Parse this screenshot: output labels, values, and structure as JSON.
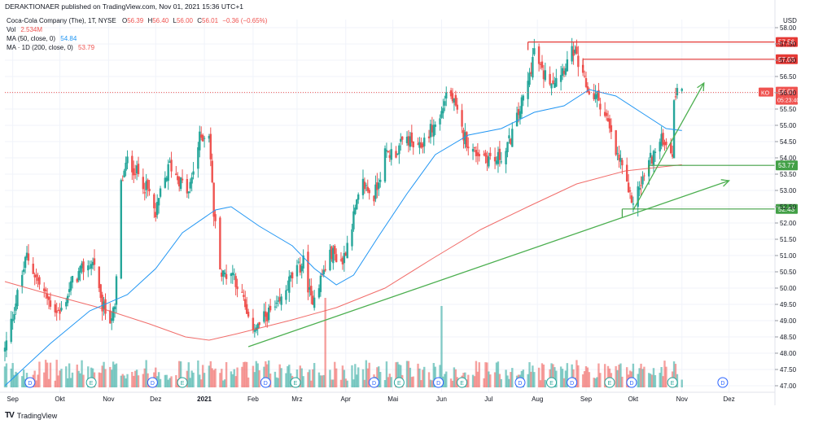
{
  "header": {
    "published": "DERAKTIONAER published on TradingView.com, Nov 01, 2021 15:36 UTC+1"
  },
  "legend": {
    "symbol_line": "Coca-Cola Company (The), 1T, NYSE",
    "ohlc": {
      "o_label": "O",
      "o": "56.39",
      "h_label": "H",
      "h": "56.40",
      "l_label": "L",
      "l": "56.00",
      "c_label": "C",
      "c": "56.01",
      "chg": "−0.36 (−0.65%)"
    },
    "vol_label": "Vol",
    "vol": "2.534M",
    "ma50_label": "MA (50, close, 0)",
    "ma50": "54.84",
    "ma200_label": "MA · 1D (200, close, 0)",
    "ma200": "53.79"
  },
  "footer": {
    "logo": "TV",
    "brand": "TradingView"
  },
  "colors": {
    "up": "#26a69a",
    "down": "#ef5350",
    "ma50": "#2196f3",
    "ma200": "#ef5350",
    "hline_red": "#e53935",
    "hline_green": "#43a047",
    "arrow": "#4caf50",
    "text": "#131722"
  },
  "chart_data": {
    "type": "candlestick",
    "currency": "USD",
    "ylim": [
      47.0,
      58.0
    ],
    "y_ticks": [
      "47.00",
      "47.50",
      "48.00",
      "48.50",
      "49.00",
      "49.50",
      "50.00",
      "50.50",
      "51.00",
      "51.50",
      "52.00",
      "52.50",
      "53.00",
      "53.50",
      "54.00",
      "54.50",
      "55.00",
      "55.50",
      "56.00",
      "56.50",
      "57.00",
      "57.50",
      "58.00"
    ],
    "x_ticks": [
      "Sep",
      "Okt",
      "Nov",
      "Dez",
      "2021",
      "Feb",
      "Mrz",
      "Apr",
      "Mai",
      "Jun",
      "Jul",
      "Aug",
      "Sep",
      "Okt",
      "Nov",
      "Dez"
    ],
    "price_path": [
      [
        "2020-08-27",
        48.1
      ],
      [
        "2020-09-04",
        49.8
      ],
      [
        "2020-09-10",
        51.0
      ],
      [
        "2020-09-17",
        50.2
      ],
      [
        "2020-09-24",
        49.6
      ],
      [
        "2020-10-01",
        49.2
      ],
      [
        "2020-10-09",
        50.2
      ],
      [
        "2020-10-16",
        50.6
      ],
      [
        "2020-10-23",
        50.8
      ],
      [
        "2020-10-27",
        49.5
      ],
      [
        "2020-11-02",
        49.1
      ],
      [
        "2020-11-05",
        49.3
      ],
      [
        "2020-11-09",
        53.2
      ],
      [
        "2020-11-13",
        53.9
      ],
      [
        "2020-11-20",
        53.5
      ],
      [
        "2020-11-27",
        52.9
      ],
      [
        "2020-12-01",
        52.2
      ],
      [
        "2020-12-04",
        52.9
      ],
      [
        "2020-12-10",
        53.8
      ],
      [
        "2020-12-15",
        53.4
      ],
      [
        "2020-12-22",
        52.9
      ],
      [
        "2020-12-29",
        54.6
      ],
      [
        "2021-01-04",
        54.8
      ],
      [
        "2021-01-07",
        52.3
      ],
      [
        "2021-01-12",
        50.4
      ],
      [
        "2021-01-19",
        50.5
      ],
      [
        "2021-01-26",
        49.6
      ],
      [
        "2021-01-29",
        48.9
      ],
      [
        "2021-02-04",
        48.8
      ],
      [
        "2021-02-10",
        49.2
      ],
      [
        "2021-02-17",
        49.4
      ],
      [
        "2021-02-24",
        50.2
      ],
      [
        "2021-03-02",
        50.6
      ],
      [
        "2021-03-05",
        50.8
      ],
      [
        "2021-03-10",
        49.6
      ],
      [
        "2021-03-17",
        50.4
      ],
      [
        "2021-03-23",
        51.1
      ],
      [
        "2021-03-30",
        50.8
      ],
      [
        "2021-04-06",
        52.2
      ],
      [
        "2021-04-12",
        53.2
      ],
      [
        "2021-04-19",
        52.8
      ],
      [
        "2021-04-26",
        54.1
      ],
      [
        "2021-05-03",
        54.2
      ],
      [
        "2021-05-10",
        54.6
      ],
      [
        "2021-05-17",
        54.2
      ],
      [
        "2021-05-24",
        54.8
      ],
      [
        "2021-05-31",
        55.2
      ],
      [
        "2021-06-04",
        56.0
      ],
      [
        "2021-06-08",
        55.8
      ],
      [
        "2021-06-14",
        54.8
      ],
      [
        "2021-06-21",
        54.2
      ],
      [
        "2021-06-28",
        54.1
      ],
      [
        "2021-07-05",
        53.9
      ],
      [
        "2021-07-12",
        54.2
      ],
      [
        "2021-07-19",
        55.2
      ],
      [
        "2021-07-26",
        56.3
      ],
      [
        "2021-07-30",
        57.3
      ],
      [
        "2021-08-04",
        56.6
      ],
      [
        "2021-08-11",
        56.4
      ],
      [
        "2021-08-18",
        56.8
      ],
      [
        "2021-08-24",
        57.3
      ],
      [
        "2021-08-30",
        56.4
      ],
      [
        "2021-09-03",
        56.0
      ],
      [
        "2021-09-09",
        55.8
      ],
      [
        "2021-09-14",
        55.2
      ],
      [
        "2021-09-20",
        54.1
      ],
      [
        "2021-09-24",
        53.8
      ],
      [
        "2021-09-28",
        52.8
      ],
      [
        "2021-10-01",
        52.7
      ],
      [
        "2021-10-06",
        53.2
      ],
      [
        "2021-10-11",
        53.9
      ],
      [
        "2021-10-15",
        54.2
      ],
      [
        "2021-10-20",
        54.6
      ],
      [
        "2021-10-26",
        54.2
      ],
      [
        "2021-10-27",
        55.6
      ],
      [
        "2021-10-29",
        56.3
      ],
      [
        "2021-11-01",
        56.01
      ]
    ],
    "ma50_path": [
      [
        "2020-08-27",
        47.0
      ],
      [
        "2020-09-25",
        48.3
      ],
      [
        "2020-10-20",
        49.3
      ],
      [
        "2020-11-13",
        49.8
      ],
      [
        "2020-12-01",
        50.6
      ],
      [
        "2020-12-18",
        51.7
      ],
      [
        "2021-01-08",
        52.4
      ],
      [
        "2021-01-18",
        52.5
      ],
      [
        "2021-02-05",
        51.9
      ],
      [
        "2021-02-26",
        51.3
      ],
      [
        "2021-03-12",
        50.6
      ],
      [
        "2021-03-26",
        50.1
      ],
      [
        "2021-04-06",
        50.4
      ],
      [
        "2021-04-22",
        51.6
      ],
      [
        "2021-05-10",
        52.9
      ],
      [
        "2021-05-28",
        54.1
      ],
      [
        "2021-06-18",
        54.7
      ],
      [
        "2021-07-09",
        54.9
      ],
      [
        "2021-07-30",
        55.4
      ],
      [
        "2021-08-18",
        55.6
      ],
      [
        "2021-09-03",
        56.1
      ],
      [
        "2021-09-20",
        55.9
      ],
      [
        "2021-10-06",
        55.4
      ],
      [
        "2021-10-22",
        54.9
      ],
      [
        "2021-11-01",
        54.84
      ]
    ],
    "ma200_path": [
      [
        "2020-08-27",
        50.2
      ],
      [
        "2020-09-25",
        49.8
      ],
      [
        "2020-10-26",
        49.4
      ],
      [
        "2020-11-27",
        48.9
      ],
      [
        "2020-12-20",
        48.5
      ],
      [
        "2021-01-04",
        48.4
      ],
      [
        "2021-01-22",
        48.6
      ],
      [
        "2021-02-24",
        49.0
      ],
      [
        "2021-03-26",
        49.4
      ],
      [
        "2021-04-26",
        50.0
      ],
      [
        "2021-05-26",
        50.9
      ],
      [
        "2021-06-26",
        51.8
      ],
      [
        "2021-07-26",
        52.5
      ],
      [
        "2021-08-26",
        53.2
      ],
      [
        "2021-09-26",
        53.6
      ],
      [
        "2021-11-01",
        53.79
      ]
    ],
    "volume_peaks": [
      [
        "2021-03-19",
        3.2
      ],
      [
        "2021-06-01",
        3.6
      ]
    ],
    "horizontal_levels": [
      {
        "value": 57.56,
        "label": "57.56",
        "color": "red"
      },
      {
        "value": 57.03,
        "label": "57.03",
        "color": "red"
      },
      {
        "value": 53.77,
        "label": "53.77",
        "color": "green"
      },
      {
        "value": 52.43,
        "label": "52.43",
        "color": "green"
      }
    ],
    "trend_arrows": [
      {
        "from": [
          "2021-01-29",
          48.2
        ],
        "to": [
          "2021-12-01",
          53.3
        ]
      },
      {
        "from": [
          "2021-10-01",
          52.4
        ],
        "to": [
          "2021-11-15",
          56.3
        ]
      }
    ],
    "last_price": {
      "symbol": "KO",
      "value": "56.01",
      "countdown": "05:23:40"
    },
    "event_markers": [
      "D",
      "E",
      "D",
      "E",
      "D",
      "E",
      "D",
      "E",
      "D",
      "E",
      "D",
      "E",
      "D",
      "E",
      "D",
      "E",
      "D"
    ]
  }
}
